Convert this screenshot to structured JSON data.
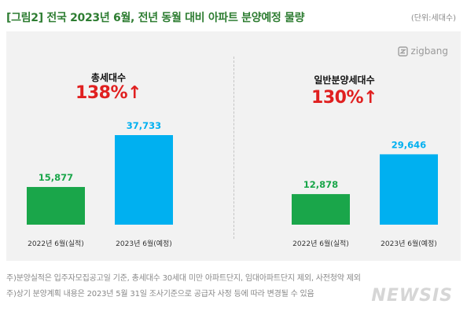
{
  "header": {
    "title": "[그림2] 전국 2023년 6월, 전년 동월 대비 아파트 분양예정 물량",
    "unit": "(단위:세대수)"
  },
  "brand": {
    "logo_text": "zigbang",
    "logo_icon": "zigbang-logo-icon",
    "watermark": "NEWSIS"
  },
  "colors": {
    "green": "#1aa64a",
    "blue": "#00b0f0",
    "red": "#e02020"
  },
  "chart_data": [
    {
      "type": "bar",
      "title": "총세대수",
      "change": "138%↑",
      "categories": [
        "2022년 6월(실적)",
        "2023년 6월(예정)"
      ],
      "values": [
        15877,
        37733
      ],
      "labels": [
        "15,877",
        "37,733"
      ],
      "colors": [
        "#1aa64a",
        "#00b0f0"
      ]
    },
    {
      "type": "bar",
      "title": "일반분양세대수",
      "change": "130%↑",
      "categories": [
        "2022년 6월(실적)",
        "2023년 6월(예정)"
      ],
      "values": [
        12878,
        29646
      ],
      "labels": [
        "12,878",
        "29,646"
      ],
      "colors": [
        "#1aa64a",
        "#00b0f0"
      ]
    }
  ],
  "notes": [
    "주)분양실적은 입주자모집공고일 기준, 총세대수 30세대 미만 아파트단지, 임대아파트단지 제외, 사전청약 제외",
    "주)상기 분양계획 내용은 2023년 5월 31일 조사기준으로 공급자 사정 등에 따라 변경될 수 있음"
  ]
}
